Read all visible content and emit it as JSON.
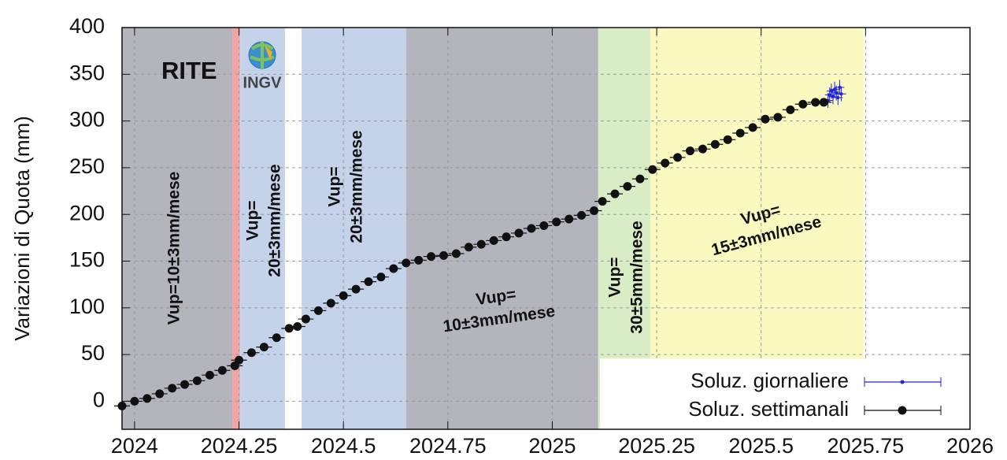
{
  "chart_data": {
    "type": "scatter",
    "ylabel": "Variazioni di Quota (mm)",
    "station": "RITE",
    "logo_text": "INGV",
    "xlim": [
      2023.97,
      2026
    ],
    "ylim": [
      -30,
      400
    ],
    "xticks": [
      2024,
      2024.25,
      2024.5,
      2024.75,
      2025,
      2025.25,
      2025.5,
      2025.75,
      2026
    ],
    "yticks": [
      0,
      50,
      100,
      150,
      200,
      250,
      300,
      350,
      400
    ],
    "grid": true,
    "legend": "lower right",
    "regions": [
      {
        "start": 2023.97,
        "end": 2024.234,
        "color": "#b4b4bc"
      },
      {
        "start": 2024.234,
        "end": 2024.252,
        "color": "#f2a3a3"
      },
      {
        "start": 2024.252,
        "end": 2024.36,
        "color": "#c4d2ea"
      },
      {
        "start": 2024.4,
        "end": 2024.65,
        "color": "#c4d2ea"
      },
      {
        "start": 2024.65,
        "end": 2025.11,
        "color": "#b4b4bc"
      },
      {
        "start": 2025.11,
        "end": 2025.235,
        "color": "#d8ecc6"
      },
      {
        "start": 2025.235,
        "end": 2025.745,
        "color": "#fafac0"
      }
    ],
    "annotations": [
      [
        "Vup=10±3mm/mese"
      ],
      [
        "Vup=",
        "20±3mm/mese"
      ],
      [
        "Vup=",
        "20±3mm/mese"
      ],
      [
        "Vup=",
        "10±3mm/mese"
      ],
      [
        "Vup=",
        "30±5mm/mese"
      ],
      [
        "Vup=",
        "15±3mm/mese"
      ]
    ],
    "series": [
      {
        "name": "Soluz. giornaliere",
        "color": "#2020e0",
        "x": [
          2025.66,
          2025.664,
          2025.668,
          2025.672,
          2025.676,
          2025.68,
          2025.684,
          2025.688,
          2025.692
        ],
        "values": [
          322,
          328,
          332,
          326,
          334,
          330,
          325,
          336,
          329
        ],
        "errors": [
          8,
          8,
          8,
          8,
          8,
          8,
          8,
          8,
          8
        ]
      },
      {
        "name": "Soluz. settimanali",
        "color": "#111111",
        "x": [
          2023.97,
          2024.0,
          2024.03,
          2024.06,
          2024.09,
          2024.12,
          2024.15,
          2024.18,
          2024.21,
          2024.24,
          2024.25,
          2024.28,
          2024.31,
          2024.34,
          2024.37,
          2024.39,
          2024.41,
          2024.44,
          2024.47,
          2024.5,
          2024.53,
          2024.56,
          2024.59,
          2024.62,
          2024.65,
          2024.68,
          2024.71,
          2024.74,
          2024.77,
          2024.8,
          2024.83,
          2024.86,
          2024.89,
          2024.92,
          2024.95,
          2024.98,
          2025.01,
          2025.04,
          2025.07,
          2025.1,
          2025.12,
          2025.15,
          2025.18,
          2025.21,
          2025.24,
          2025.27,
          2025.3,
          2025.33,
          2025.36,
          2025.39,
          2025.42,
          2025.45,
          2025.48,
          2025.51,
          2025.54,
          2025.57,
          2025.6,
          2025.63,
          2025.65
        ],
        "values": [
          -5,
          0,
          3,
          8,
          14,
          18,
          22,
          28,
          33,
          38,
          44,
          52,
          58,
          68,
          78,
          80,
          88,
          97,
          105,
          113,
          120,
          128,
          133,
          142,
          148,
          151,
          155,
          156,
          158,
          165,
          168,
          172,
          176,
          180,
          185,
          188,
          192,
          195,
          199,
          204,
          214,
          222,
          230,
          238,
          248,
          255,
          261,
          268,
          270,
          275,
          280,
          287,
          293,
          302,
          304,
          312,
          318,
          320,
          320
        ]
      }
    ]
  }
}
